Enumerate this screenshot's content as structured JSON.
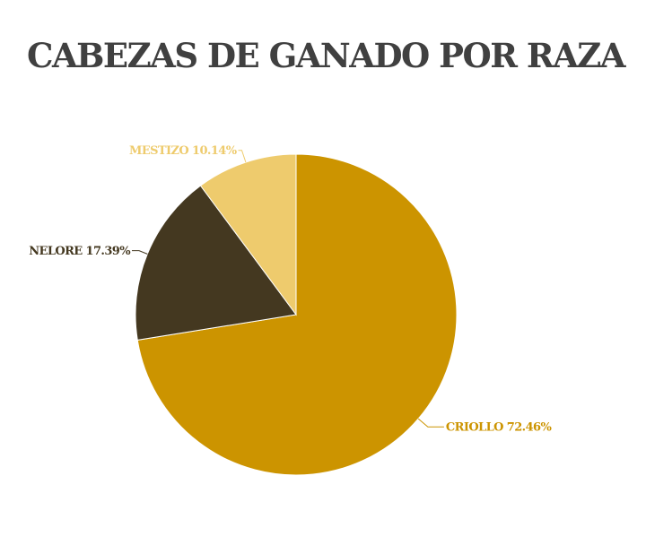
{
  "chart_data": {
    "type": "pie",
    "title": "CABEZAS DE GANADO POR RAZA",
    "slices": [
      {
        "label": "CRIOLLO",
        "value": 72.46,
        "percent_text": "72.46%",
        "color": "#CC9400"
      },
      {
        "label": "NELORE",
        "value": 17.39,
        "percent_text": "17.39%",
        "color": "#443820"
      },
      {
        "label": "MESTIZO",
        "value": 10.14,
        "percent_text": "10.14%",
        "color": "#EECB6D"
      }
    ],
    "start_angle": "12 o'clock",
    "direction": "clockwise",
    "legend": "none",
    "labels": "outside with leader lines"
  }
}
